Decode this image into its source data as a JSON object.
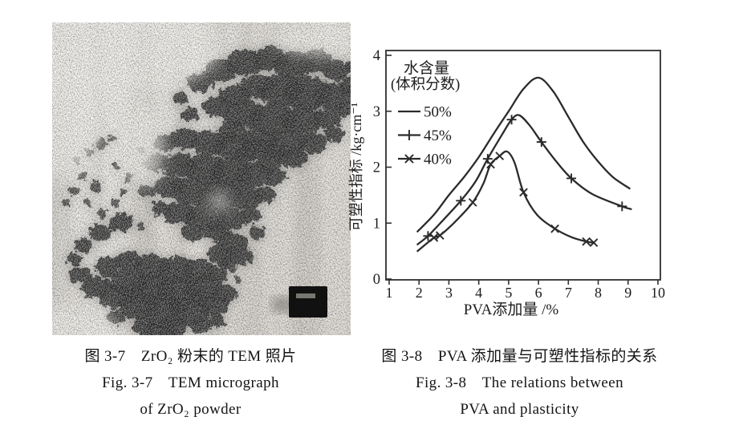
{
  "page": {
    "background": "#ffffff",
    "description_visible_content": "scanned book page with two figures"
  },
  "figures": {
    "left": {
      "kind": "tem-micrograph",
      "caption_lines": [
        "图 3-7　ZrO₂ 粉末的 TEM 照片",
        "Fig. 3-7　TEM micrograph",
        "of ZrO₂ powder"
      ]
    },
    "right": {
      "kind": "line-chart",
      "caption_lines": [
        "图 3-8　PVA 添加量与可塑性指标的关系",
        "Fig. 3-8　The relations between",
        "PVA and plasticity"
      ]
    }
  },
  "chart_data": {
    "type": "line",
    "title": "",
    "xlabel": "PVA添加量 /%",
    "ylabel": "可塑性指标 /kg·cm⁻¹",
    "xlim": [
      1,
      10
    ],
    "ylim": [
      0,
      4
    ],
    "xticks": [
      1,
      2,
      3,
      4,
      5,
      6,
      7,
      8,
      9,
      10
    ],
    "yticks": [
      0,
      1,
      2,
      3,
      4
    ],
    "grid": false,
    "frame": true,
    "axis_color": "#2f2f2f",
    "text_color": "#1c1c1c",
    "line_color": "#2b2b2b",
    "legend": {
      "position": "top-left",
      "title_lines": [
        "水含量",
        "(体积分数)"
      ],
      "entries": [
        "50%",
        "45%",
        "40%"
      ]
    },
    "series": [
      {
        "name": "50%",
        "marker": "none",
        "x": [
          1.95,
          2.5,
          3.0,
          3.5,
          4.0,
          4.5,
          5.0,
          5.5,
          6.0,
          6.5,
          7.0,
          7.5,
          8.0,
          8.5,
          9.05
        ],
        "y": [
          0.85,
          1.15,
          1.5,
          1.82,
          2.18,
          2.6,
          3.0,
          3.4,
          3.6,
          3.35,
          2.9,
          2.45,
          2.1,
          1.82,
          1.62
        ]
      },
      {
        "name": "45%",
        "marker": "plus",
        "x": [
          1.95,
          2.3,
          2.8,
          3.4,
          3.9,
          4.3,
          4.8,
          5.1,
          5.35,
          5.7,
          6.1,
          6.6,
          7.1,
          7.8,
          8.8,
          9.1
        ],
        "y": [
          0.62,
          0.77,
          1.05,
          1.4,
          1.75,
          2.15,
          2.6,
          2.85,
          2.93,
          2.75,
          2.45,
          2.1,
          1.8,
          1.52,
          1.3,
          1.25
        ],
        "marker_points": {
          "x": [
            2.3,
            3.4,
            4.3,
            5.1,
            6.1,
            7.1,
            8.8
          ],
          "y": [
            0.77,
            1.4,
            2.15,
            2.85,
            2.45,
            1.8,
            1.3
          ]
        }
      },
      {
        "name": "40%",
        "marker": "x",
        "x": [
          1.95,
          2.5,
          2.7,
          3.2,
          3.8,
          4.15,
          4.4,
          4.7,
          4.95,
          5.2,
          5.5,
          5.95,
          6.55,
          7.1,
          7.6,
          7.85
        ],
        "y": [
          0.5,
          0.74,
          0.78,
          1.02,
          1.37,
          1.7,
          2.05,
          2.2,
          2.28,
          2.08,
          1.55,
          1.15,
          0.9,
          0.75,
          0.67,
          0.65
        ],
        "marker_points": {
          "x": [
            2.5,
            2.7,
            3.8,
            4.4,
            4.7,
            5.5,
            6.55,
            7.6,
            7.85
          ],
          "y": [
            0.74,
            0.78,
            1.37,
            2.05,
            2.2,
            1.55,
            0.9,
            0.67,
            0.65
          ]
        }
      }
    ]
  }
}
